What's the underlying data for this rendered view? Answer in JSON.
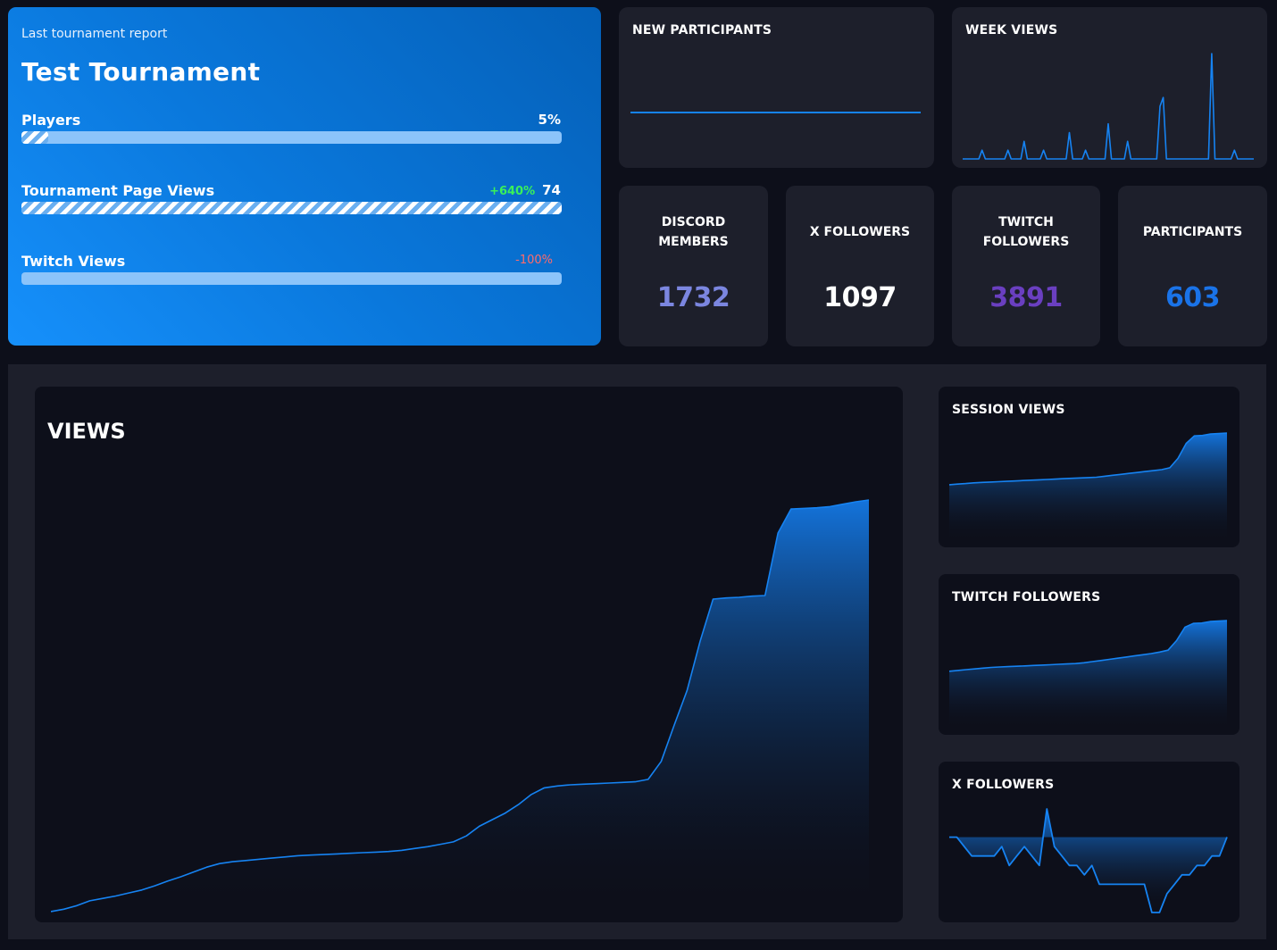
{
  "report": {
    "subtitle": "Last tournament report",
    "title": "Test Tournament",
    "metrics": [
      {
        "label": "Players",
        "value": "5%",
        "delta": "",
        "fill": 0.05
      },
      {
        "label": "Tournament Page Views",
        "value": "74",
        "delta": "+640%",
        "fill": 1.0
      },
      {
        "label": "Twitch Views",
        "value": "",
        "delta": "-100%",
        "fill": 0.0
      }
    ]
  },
  "panels": {
    "new_participants": "NEW PARTICIPANTS",
    "week_views": "WEEK VIEWS",
    "views": "VIEWS",
    "session_views": "SESSION VIEWS",
    "twitch_followers": "TWITCH FOLLOWERS",
    "x_followers": "X FOLLOWERS"
  },
  "stats": [
    {
      "label_line1": "DISCORD",
      "label_line2": "MEMBERS",
      "value": "1732",
      "color": "#7b86e0"
    },
    {
      "label_line1": "X FOLLOWERS",
      "label_line2": "",
      "value": "1097",
      "color": "#ffffff"
    },
    {
      "label_line1": "TWITCH",
      "label_line2": "FOLLOWERS",
      "value": "3891",
      "color": "#6a3fc0"
    },
    {
      "label_line1": "PARTICIPANTS",
      "label_line2": "",
      "value": "603",
      "color": "#1a73e8"
    }
  ],
  "colors": {
    "accent": "#1683f2",
    "bar_bg": "#8cc4fa"
  },
  "chart_data": [
    {
      "type": "line",
      "title": "NEW PARTICIPANTS",
      "values": [
        0,
        0,
        0,
        0,
        0,
        0,
        0,
        0,
        0,
        0
      ]
    },
    {
      "type": "line",
      "title": "WEEK VIEWS",
      "values": [
        0,
        0,
        0,
        0,
        0,
        0,
        1,
        0,
        0,
        0,
        0,
        0,
        0,
        0,
        1,
        0,
        0,
        0,
        0,
        2,
        0,
        0,
        0,
        0,
        0,
        1,
        0,
        0,
        0,
        0,
        0,
        0,
        0,
        3,
        0,
        0,
        0,
        0,
        1,
        0,
        0,
        0,
        0,
        0,
        0,
        4,
        0,
        0,
        0,
        0,
        0,
        2,
        0,
        0,
        0,
        0,
        0,
        0,
        0,
        0,
        0,
        6,
        7,
        0,
        0,
        0,
        0,
        0,
        0,
        0,
        0,
        0,
        0,
        0,
        0,
        0,
        0,
        12,
        0,
        0,
        0,
        0,
        0,
        0,
        1,
        0,
        0,
        0,
        0,
        0,
        0
      ]
    },
    {
      "type": "area",
      "title": "VIEWS",
      "values": [
        0,
        0.4,
        1,
        1.8,
        2.2,
        2.6,
        3.1,
        3.6,
        4.3,
        5.1,
        5.8,
        6.6,
        7.4,
        8,
        8.3,
        8.5,
        8.7,
        8.9,
        9.1,
        9.3,
        9.4,
        9.5,
        9.6,
        9.7,
        9.8,
        9.9,
        10,
        10.2,
        10.5,
        10.8,
        11.2,
        11.6,
        12.6,
        14.2,
        15.3,
        16.4,
        17.8,
        19.5,
        20.6,
        20.9,
        21.1,
        21.2,
        21.3,
        21.4,
        21.5,
        21.6,
        22,
        25,
        31,
        36.8,
        45,
        52,
        52.2,
        52.3,
        52.5,
        52.6,
        63,
        67,
        67.1,
        67.2,
        67.4,
        67.8,
        68.2,
        68.5
      ]
    },
    {
      "type": "area",
      "title": "SESSION VIEWS",
      "values": [
        10,
        10.3,
        10.6,
        11,
        11.2,
        11.4,
        11.6,
        11.8,
        12,
        12.2,
        12.4,
        12.6,
        12.8,
        13,
        13.2,
        13.4,
        13.6,
        13.8,
        14,
        14.5,
        15,
        15.5,
        16,
        16.5,
        17,
        17.5,
        18,
        19,
        24,
        32,
        36,
        36.2,
        37,
        37.2,
        37.5
      ]
    },
    {
      "type": "area",
      "title": "TWITCH FOLLOWERS",
      "values": [
        10,
        10.4,
        10.8,
        11.2,
        11.6,
        12,
        12.2,
        12.4,
        12.6,
        12.8,
        13,
        13.2,
        13.4,
        13.6,
        13.8,
        14,
        14.4,
        15,
        15.6,
        16.2,
        16.8,
        17.4,
        18,
        18.6,
        19.2,
        20,
        21,
        26,
        33,
        35,
        35.2,
        36,
        36.2,
        36.5
      ]
    },
    {
      "type": "line",
      "title": "X FOLLOWERS",
      "values": [
        0,
        0,
        -1,
        -2,
        -2,
        -2,
        -2,
        -1,
        -3,
        -2,
        -1,
        -2,
        -3,
        3,
        -1,
        -2,
        -3,
        -3,
        -4,
        -3,
        -5,
        -5,
        -5,
        -5,
        -5,
        -5,
        -5,
        -8,
        -8,
        -6,
        -5,
        -4,
        -4,
        -3,
        -3,
        -2,
        -2,
        0
      ]
    }
  ]
}
